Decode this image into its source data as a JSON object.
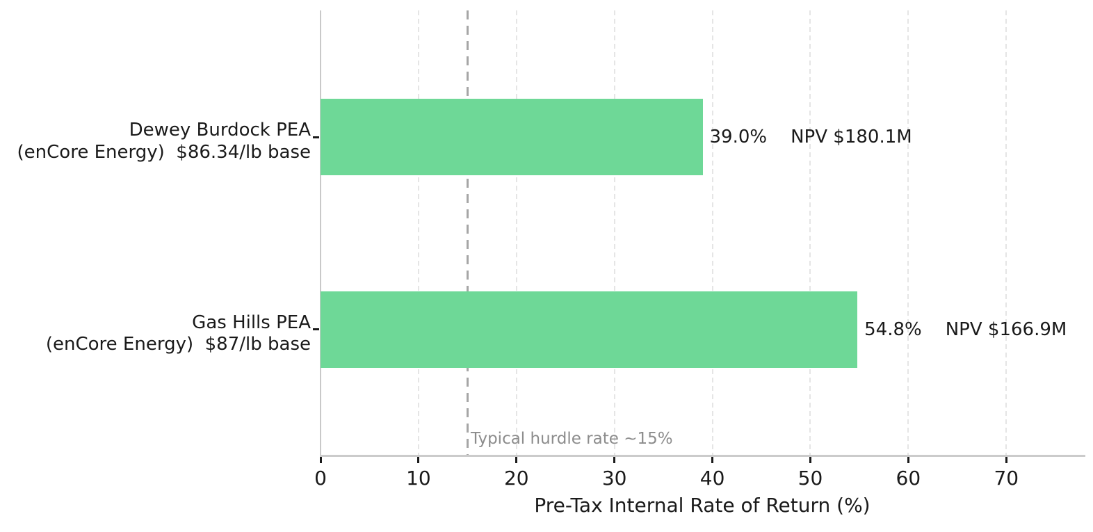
{
  "chart_data": {
    "type": "bar",
    "orientation": "horizontal",
    "title": "",
    "xlabel": "Pre-Tax Internal Rate of Return (%)",
    "ylabel": "",
    "xlim": [
      0,
      78
    ],
    "xticks": [
      0,
      10,
      20,
      30,
      40,
      50,
      60,
      70
    ],
    "grid": {
      "axis": "x",
      "style": "dashed",
      "color": "#e5e5e5"
    },
    "legend": "none",
    "bars": [
      {
        "category_line1": "Dewey Burdock PEA",
        "category_line2": "(enCore Energy)  $86.34/lb base",
        "value": 39.0,
        "value_label": "39.0%",
        "npv_label": "NPV $180.1M"
      },
      {
        "category_line1": "Gas Hills PEA",
        "category_line2": "(enCore Energy)  $87/lb base",
        "value": 54.8,
        "value_label": "54.8%",
        "npv_label": "NPV $166.9M"
      }
    ],
    "reference_line": {
      "value": 15,
      "label": "Typical hurdle rate ~15%",
      "style": "dashed"
    },
    "colors": {
      "bar": "#6ed897",
      "text": "#1a1a1a",
      "annotation": "#8c8c8c",
      "spine": "#c9c9c9",
      "grid": "#e5e5e5",
      "reference_line": "#a6a6a6"
    }
  }
}
